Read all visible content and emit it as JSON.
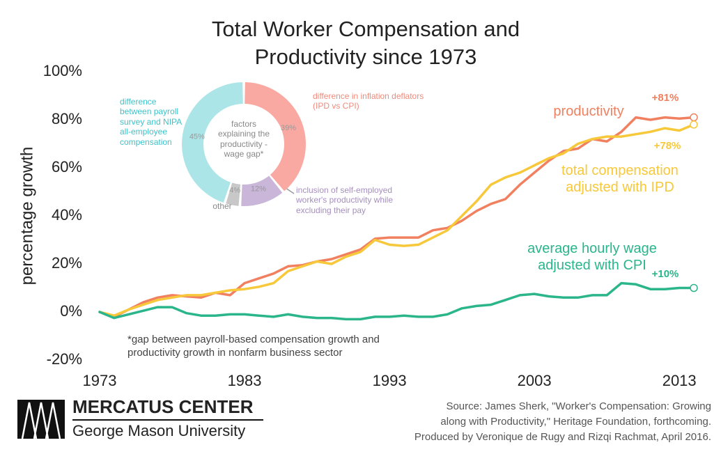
{
  "chart_data": [
    {
      "type": "line",
      "title": "Total Worker Compensation and Productivity since 1973",
      "y_label": "percentage growth",
      "x": [
        1973,
        1974,
        1975,
        1976,
        1977,
        1978,
        1979,
        1980,
        1981,
        1982,
        1983,
        1984,
        1985,
        1986,
        1987,
        1988,
        1989,
        1990,
        1991,
        1992,
        1993,
        1994,
        1995,
        1996,
        1997,
        1998,
        1999,
        2000,
        2001,
        2002,
        2003,
        2004,
        2005,
        2006,
        2007,
        2008,
        2009,
        2010,
        2011,
        2012,
        2013,
        2014
      ],
      "xlim": [
        1973,
        2014
      ],
      "xticks": [
        1973,
        1983,
        1993,
        2003,
        2013
      ],
      "ylim": [
        -20,
        100
      ],
      "yticks": [
        {
          "value": -20,
          "label": "-20%"
        },
        {
          "value": 0,
          "label": "0%"
        },
        {
          "value": 20,
          "label": "20%"
        },
        {
          "value": 40,
          "label": "40%"
        },
        {
          "value": 60,
          "label": "60%"
        },
        {
          "value": 80,
          "label": "80%"
        },
        {
          "value": 100,
          "label": "100%"
        }
      ],
      "grid": false,
      "series": [
        {
          "name": "productivity",
          "color": "#f0805f",
          "end_label": "+81%",
          "values": [
            0,
            -2,
            1,
            4,
            6,
            7,
            6.5,
            6,
            8,
            7,
            12,
            14,
            16,
            19,
            19.5,
            21,
            22,
            24,
            26,
            30.5,
            31,
            31,
            31,
            34,
            35,
            38,
            42,
            45,
            47,
            53,
            58,
            63,
            67,
            68,
            72,
            71,
            75,
            81,
            80,
            81,
            80.5,
            81
          ]
        },
        {
          "name": "total compensation adjusted with IPD",
          "color": "#f7c83a",
          "end_label": "+78%",
          "values": [
            0,
            -1.5,
            1,
            3,
            5,
            6,
            7,
            7,
            8,
            9,
            9.5,
            10.5,
            12,
            17,
            19,
            21,
            20,
            23,
            25,
            30,
            28,
            27.5,
            28,
            31,
            34,
            40,
            46,
            53,
            56,
            58,
            61,
            64,
            66,
            70,
            72,
            73,
            73,
            74,
            75,
            76.5,
            75.5,
            78
          ]
        },
        {
          "name": "average hourly wage adjusted with CPI",
          "color": "#2bb58a",
          "end_label": "+10%",
          "values": [
            0,
            -2.5,
            -1,
            0.5,
            2,
            2,
            -0.5,
            -1.5,
            -1.5,
            -1,
            -1,
            -1.5,
            -2,
            -1,
            -2,
            -2.5,
            -2.5,
            -3,
            -3,
            -2,
            -2,
            -1.5,
            -2,
            -2,
            -1,
            1.5,
            2.5,
            3,
            5,
            7,
            7.5,
            6.5,
            6,
            6,
            7,
            7,
            12,
            11.5,
            9.5,
            9.5,
            10,
            10
          ]
        }
      ]
    },
    {
      "type": "pie",
      "center_text": "factors explaining the productivity -wage gap*",
      "categories": [
        "difference in inflation deflators (IPD vs CPI)",
        "inclusion of self-employed worker's productivity while excluding their pay",
        "other",
        "difference between payroll survey and NIPA all-employee compensation"
      ],
      "values": [
        39,
        12,
        4,
        45
      ],
      "value_labels": [
        "39%",
        "12%",
        "4%",
        "45%"
      ],
      "colors": [
        "#f9a9a1",
        "#c9b6d8",
        "#c8c8c8",
        "#abe5e7"
      ],
      "label_colors": [
        "#f08a7b",
        "#a58fbe",
        "#8a8a8a",
        "#3cc3c9"
      ],
      "note": "*gap between payroll-based compensation growth and productivity growth in nonfarm business sector"
    }
  ],
  "footer": {
    "logo_name": "MERCATUS CENTER",
    "logo_subtitle": "George Mason University",
    "source": [
      "Source: James Sherk, \"Worker's Compensation: Growing",
      "along with Productivity,\" Heritage Foundation, forthcoming.",
      "Produced by Veronique de Rugy and Rizqi Rachmat, April 2016."
    ]
  }
}
